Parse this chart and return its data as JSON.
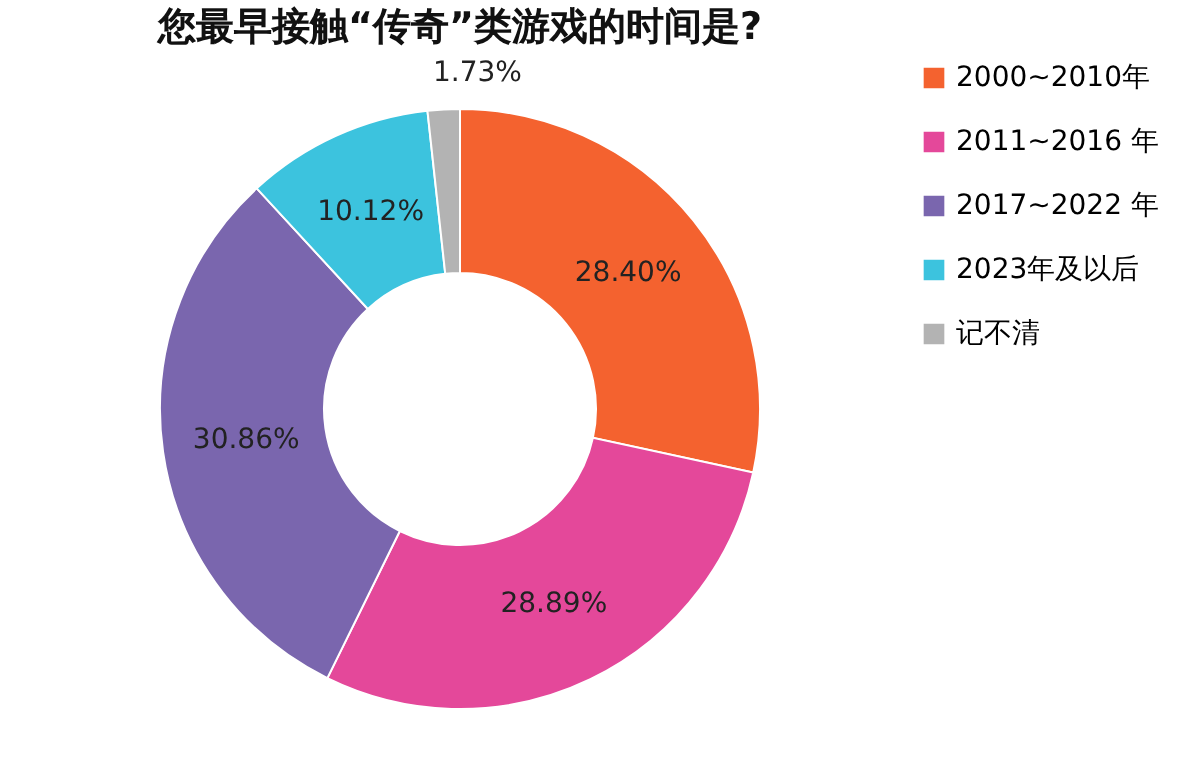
{
  "chart_data": {
    "type": "donut",
    "title": "您最早接触“传奇”类游戏的时间是?",
    "categories": [
      "2000~2010年",
      "2011~2016 年",
      "2017~2022 年",
      "2023年及以后",
      "记不清"
    ],
    "values": [
      28.4,
      28.89,
      30.86,
      10.12,
      1.73
    ],
    "colors": [
      "#f4622f",
      "#e4489a",
      "#7a66ae",
      "#3cc3de",
      "#b3b3b3"
    ],
    "value_labels": [
      "28.40%",
      "28.89%",
      "30.86%",
      "10.12%",
      "1.73%"
    ],
    "legend": "right"
  }
}
